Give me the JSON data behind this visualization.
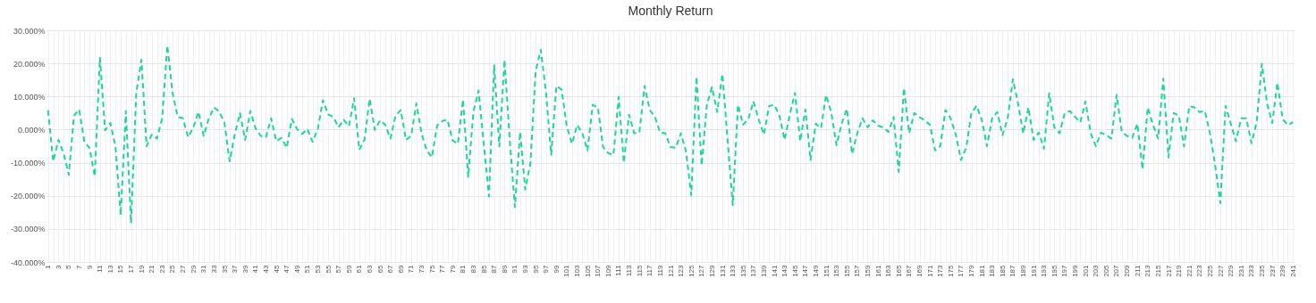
{
  "chart_data": {
    "type": "line",
    "title": "Monthly Return",
    "categories": [
      "1",
      null,
      "3",
      null,
      "5",
      null,
      "7",
      null,
      "9",
      null,
      "11",
      null,
      "13",
      null,
      "15",
      null,
      "17",
      null,
      "19",
      null,
      "21",
      null,
      "23",
      null,
      "25",
      null,
      "27",
      null,
      "29",
      null,
      "31",
      null,
      "33",
      null,
      "35",
      null,
      "37",
      null,
      "39",
      null,
      "41",
      null,
      "43",
      null,
      "45",
      null,
      "47",
      null,
      "49",
      null,
      "51",
      null,
      "53",
      null,
      "55",
      null,
      "57",
      null,
      "59",
      null,
      "61",
      null,
      "63",
      null,
      "65",
      null,
      "67",
      null,
      "69",
      null,
      "71",
      null,
      "73",
      null,
      "75",
      null,
      "77",
      null,
      "79",
      null,
      "81",
      null,
      "83",
      null,
      "85",
      null,
      "87",
      null,
      "89",
      null,
      "91",
      null,
      "93",
      null,
      "95",
      null,
      "97",
      null,
      "99",
      null,
      "101",
      null,
      "103",
      null,
      "105",
      null,
      "107",
      null,
      "109",
      null,
      "111",
      null,
      "113",
      null,
      "115",
      null,
      "117",
      null,
      "119",
      null,
      "121",
      null,
      "123",
      null,
      "125",
      null,
      "127",
      null,
      "129",
      null,
      "131",
      null,
      "133",
      null,
      "135",
      null,
      "137",
      null,
      "139",
      null,
      "141",
      null,
      "143",
      null,
      "145",
      null,
      "147",
      null,
      "149",
      null,
      "151",
      null,
      "153",
      null,
      "155",
      null,
      "157",
      null,
      "159",
      null,
      "161",
      null,
      "163",
      null,
      "165",
      null,
      "167",
      null,
      "169",
      null,
      "171",
      null,
      "173",
      null,
      "175",
      null,
      "177",
      null,
      "179",
      null,
      "181",
      null,
      "183",
      null,
      "185",
      null,
      "187",
      null,
      "189",
      null,
      "191",
      null,
      "193",
      null,
      "195",
      null,
      "197",
      null,
      "199",
      null,
      "201",
      null,
      "203",
      null,
      "205",
      null,
      "207",
      null,
      "209",
      null,
      "211",
      null,
      "213",
      null,
      "215",
      null,
      "217",
      null,
      "219",
      null,
      "221",
      null,
      "223",
      null,
      "225",
      null,
      "227",
      null,
      "229",
      null,
      "231",
      null,
      "233",
      null,
      "235",
      null,
      "237",
      null,
      "239",
      null,
      "241"
    ],
    "series": [
      {
        "color": "#1dd69c",
        "values": [
          5.8,
          -9.6,
          -3.1,
          -7.1,
          -13.7,
          4.2,
          6.1,
          -3.7,
          -5.5,
          -14.1,
          21.7,
          -0.2,
          2.0,
          -5.1,
          -25.9,
          5.6,
          -28.3,
          11.0,
          21.1,
          -5.0,
          -1.5,
          -2.7,
          3.4,
          25.4,
          11.1,
          3.8,
          3.4,
          -2.3,
          0.6,
          5.4,
          -1.9,
          3.4,
          6.7,
          5.4,
          2.2,
          -9.6,
          -1.5,
          5.0,
          -3.1,
          5.6,
          0.4,
          -1.9,
          -2.3,
          3.4,
          -3.5,
          -2.5,
          -5.5,
          3.2,
          0.2,
          -1.3,
          0.2,
          -3.7,
          0.2,
          8.9,
          4.6,
          3.8,
          0.7,
          3.0,
          1.0,
          9.5,
          -6.1,
          -3.1,
          9.3,
          -0.1,
          2.8,
          1.5,
          -2.7,
          4.2,
          5.9,
          -3.1,
          -1.9,
          7.9,
          -1.1,
          -6.3,
          -8.4,
          1.2,
          2.6,
          3.0,
          -3.3,
          -4.3,
          9.1,
          -14.3,
          5.4,
          11.8,
          -4.3,
          -20.2,
          19.4,
          -5.1,
          21.1,
          -3.0,
          -23.4,
          -0.7,
          -18.1,
          -10.0,
          17.6,
          24.1,
          11.1,
          -7.6,
          13.2,
          12.1,
          1.0,
          -4.3,
          1.4,
          -1.1,
          -6.3,
          7.5,
          6.7,
          -5.3,
          -7.1,
          -7.7,
          9.9,
          -10.0,
          4.5,
          -1.1,
          -0.9,
          13.2,
          5.9,
          3.8,
          -0.9,
          -1.1,
          -5.3,
          -5.5,
          -1.1,
          -6.7,
          -19.8,
          16.0,
          -10.8,
          7.5,
          12.8,
          5.3,
          16.8,
          -3.0,
          -22.8,
          7.5,
          1.5,
          3.2,
          8.5,
          3.0,
          -1.5,
          7.1,
          7.5,
          4.2,
          -3.1,
          4.6,
          11.1,
          -3.5,
          6.1,
          -9.2,
          1.8,
          0.4,
          10.5,
          5.0,
          -4.7,
          1.8,
          6.3,
          -7.4,
          -1.1,
          3.4,
          0.7,
          2.8,
          1.2,
          0.7,
          -0.7,
          3.8,
          -12.8,
          12.6,
          -1.1,
          5.0,
          3.8,
          2.8,
          1.5,
          -6.3,
          -5.0,
          5.9,
          3.4,
          -1.5,
          -9.2,
          -5.5,
          5.0,
          7.2,
          3.0,
          -5.0,
          3.4,
          5.3,
          -1.7,
          3.4,
          15.2,
          7.9,
          -1.2,
          6.7,
          -3.1,
          -0.9,
          -5.8,
          11.0,
          0.6,
          -1.1,
          5.0,
          5.6,
          3.8,
          2.2,
          8.5,
          -1.1,
          -5.0,
          -0.9,
          -1.7,
          -2.7,
          10.5,
          -0.7,
          -1.9,
          -2.5,
          1.8,
          -12.0,
          6.7,
          1.5,
          -2.7,
          15.4,
          -8.4,
          5.0,
          4.2,
          -5.1,
          7.1,
          6.7,
          5.3,
          5.6,
          -1.1,
          -10.8,
          -22.2,
          7.2,
          1.8,
          -3.5,
          3.4,
          3.4,
          -4.1,
          2.2,
          19.9,
          7.9,
          2.0,
          14.2,
          3.2,
          1.4,
          2.2
        ]
      }
    ],
    "ylim": [
      -40,
      30
    ],
    "yticks": [
      {
        "value": -40,
        "label": "-40.000%"
      },
      {
        "value": -30,
        "label": "-30.000%"
      },
      {
        "value": -20,
        "label": "-20.000%"
      },
      {
        "value": -10,
        "label": "-10.000%"
      },
      {
        "value": 0,
        "label": "0.000%"
      },
      {
        "value": 10,
        "label": "10.000%"
      },
      {
        "value": 20,
        "label": "20.000%"
      },
      {
        "value": 30,
        "label": "30.000%"
      }
    ],
    "grid": true,
    "marker": "none",
    "line_style": "dashed"
  }
}
